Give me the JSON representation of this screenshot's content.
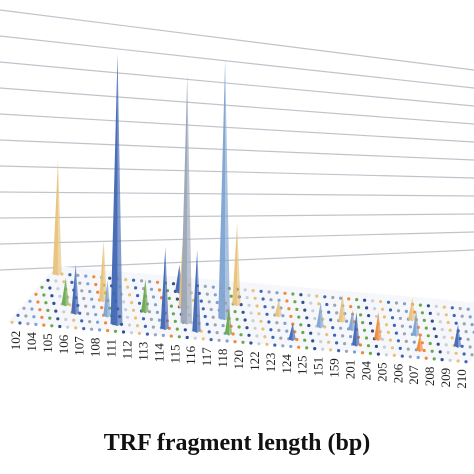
{
  "chart_data": {
    "type": "3d-column",
    "title": "",
    "xlabel": "TRF fragment length (bp)",
    "ylabel": "",
    "grid": true,
    "categories": [
      "102",
      "104",
      "105",
      "106",
      "107",
      "108",
      "111",
      "112",
      "113",
      "114",
      "115",
      "116",
      "117",
      "118",
      "120",
      "122",
      "123",
      "124",
      "125",
      "151",
      "159",
      "201",
      "204",
      "205",
      "206",
      "207",
      "208",
      "209",
      "210"
    ],
    "series_colors": [
      "#e8c27a",
      "#3f66b3",
      "#9aa5b6",
      "#7ea2d1",
      "#ef8a3a",
      "#6aa84f",
      "#2f4f8f",
      "#c9cfd8"
    ],
    "peaks": [
      {
        "category": "102",
        "row": 7,
        "height": 0.42,
        "color": "#e8c27a"
      },
      {
        "category": "105",
        "row": 3,
        "height": 0.1,
        "color": "#6aa84f"
      },
      {
        "category": "106",
        "row": 2,
        "height": 0.18,
        "color": "#3f66b3"
      },
      {
        "category": "107",
        "row": 4,
        "height": 0.22,
        "color": "#e8c27a"
      },
      {
        "category": "108",
        "row": 2,
        "height": 0.13,
        "color": "#7ea2d1"
      },
      {
        "category": "111",
        "row": 1,
        "height": 1.0,
        "color": "#3f66b3"
      },
      {
        "category": "112",
        "row": 3,
        "height": 0.12,
        "color": "#6aa84f"
      },
      {
        "category": "113",
        "row": 6,
        "height": 0.1,
        "color": "#3f66b3"
      },
      {
        "category": "114",
        "row": 4,
        "height": 0.28,
        "color": "#e8c27a"
      },
      {
        "category": "114",
        "row": 1,
        "height": 0.3,
        "color": "#3f66b3"
      },
      {
        "category": "115",
        "row": 2,
        "height": 0.92,
        "color": "#9aa5b6"
      },
      {
        "category": "116",
        "row": 1,
        "height": 0.3,
        "color": "#3f66b3"
      },
      {
        "category": "117",
        "row": 3,
        "height": 0.96,
        "color": "#7ea2d1"
      },
      {
        "category": "117",
        "row": 5,
        "height": 0.3,
        "color": "#e8c27a"
      },
      {
        "category": "118",
        "row": 1,
        "height": 0.1,
        "color": "#6aa84f"
      },
      {
        "category": "122",
        "row": 4,
        "height": 0.06,
        "color": "#e8c27a"
      },
      {
        "category": "124",
        "row": 1,
        "height": 0.06,
        "color": "#3f66b3"
      },
      {
        "category": "125",
        "row": 3,
        "height": 0.09,
        "color": "#7ea2d1"
      },
      {
        "category": "151",
        "row": 4,
        "height": 0.1,
        "color": "#e8c27a"
      },
      {
        "category": "159",
        "row": 3,
        "height": 0.07,
        "color": "#7ea2d1"
      },
      {
        "category": "201",
        "row": 1,
        "height": 0.12,
        "color": "#3f66b3"
      },
      {
        "category": "204",
        "row": 2,
        "height": 0.1,
        "color": "#ef8a3a"
      },
      {
        "category": "205",
        "row": 5,
        "height": 0.08,
        "color": "#e8c27a"
      },
      {
        "category": "206",
        "row": 3,
        "height": 0.09,
        "color": "#7ea2d1"
      },
      {
        "category": "207",
        "row": 1,
        "height": 0.06,
        "color": "#ef8a3a"
      },
      {
        "category": "209",
        "row": 2,
        "height": 0.08,
        "color": "#3f66b3"
      },
      {
        "category": "210",
        "row": 4,
        "height": 0.06,
        "color": "#e8c27a"
      }
    ]
  }
}
